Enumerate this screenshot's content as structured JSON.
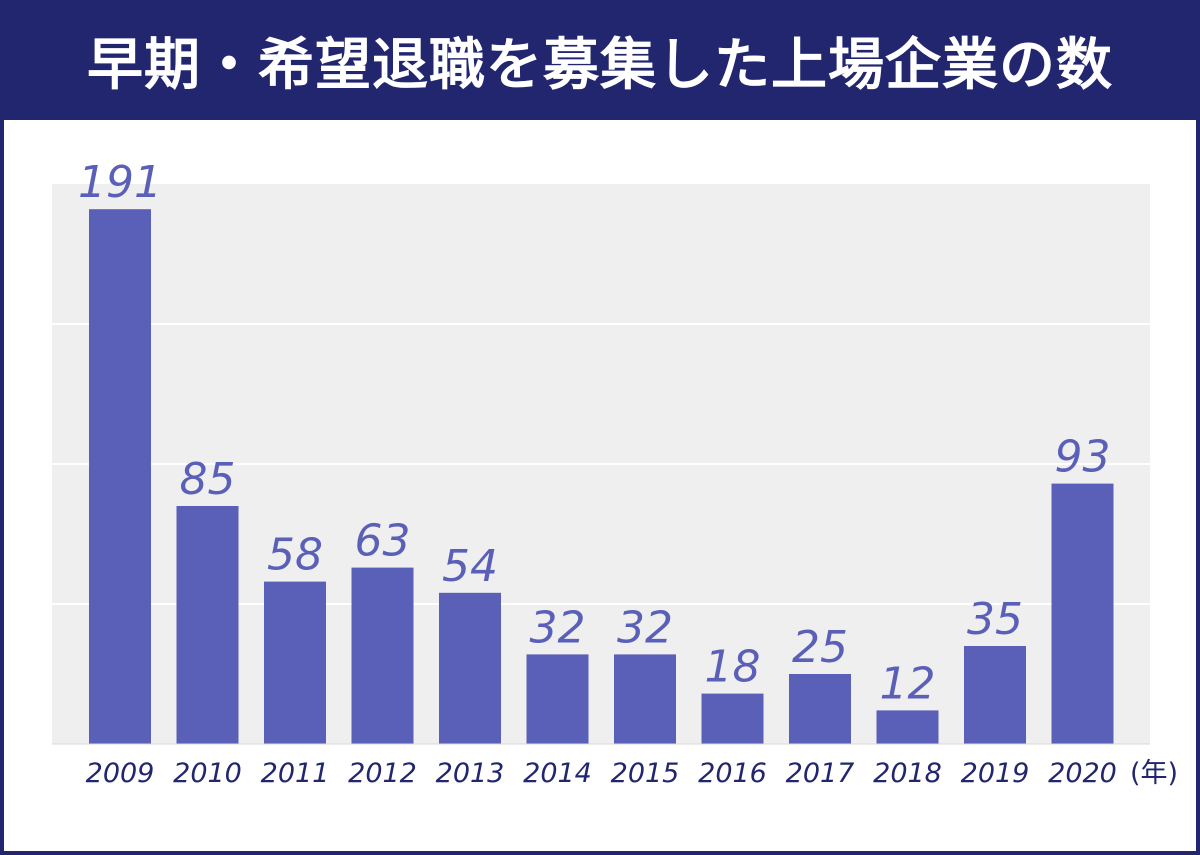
{
  "chart_data": {
    "type": "bar",
    "title": "早期・希望退職を募集した上場企業の数",
    "categories": [
      "2009",
      "2010",
      "2011",
      "2012",
      "2013",
      "2014",
      "2015",
      "2016",
      "2017",
      "2018",
      "2019",
      "2020"
    ],
    "values": [
      191,
      85,
      58,
      63,
      54,
      32,
      32,
      18,
      25,
      12,
      35,
      93
    ],
    "x_unit": "(年)",
    "ylim": [
      0,
      200
    ],
    "grid": true,
    "colors": {
      "bar": "#5a5fb8",
      "value_label": "#5a5fb8",
      "header_bg": "#22266e",
      "plot_bg": "#efefef",
      "gridline": "#ffffff"
    }
  }
}
